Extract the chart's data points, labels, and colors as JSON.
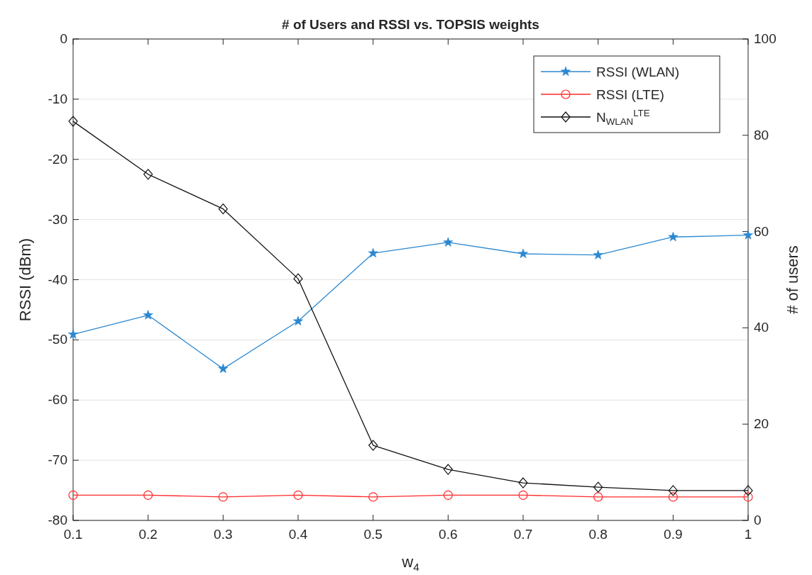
{
  "chart_data": {
    "type": "line",
    "title": "# of Users and RSSI vs. TOPSIS weights",
    "xlabel": "w$_{4}$",
    "ylabel": "RSSI (dBm)",
    "y2label": "# of users",
    "x": [
      0.1,
      0.2,
      0.3,
      0.4,
      0.5,
      0.6,
      0.7,
      0.8,
      0.9,
      1
    ],
    "series": [
      {
        "name": "RSSI (WLAN)",
        "color": "#2b88d0",
        "marker": "star",
        "values": [
          -49.1,
          -45.9,
          -54.8,
          -46.9,
          -35.6,
          -33.8,
          -35.7,
          -35.9,
          -32.9,
          -32.6
        ]
      },
      {
        "name": "RSSI (LTE)",
        "color": "#ff2a2a",
        "marker": "circle",
        "values": [
          -75.8,
          -75.8,
          -76.1,
          -75.8,
          -76.1,
          -75.8,
          -75.8,
          -76.1,
          -76.1,
          -76.1
        ]
      },
      {
        "name": "N$_{WLAN}$$^{LTE}$",
        "color": "#111111",
        "marker": "diamond",
        "axis": "y2",
        "values": [
          82.9,
          71.9,
          64.7,
          50.2,
          15.6,
          10.6,
          7.8,
          6.9,
          6.2,
          6.2
        ]
      }
    ],
    "xlim": [
      0.1,
      1
    ],
    "xticks": [
      0.1,
      0.2,
      0.3,
      0.4,
      0.5,
      0.6,
      0.7,
      0.8,
      0.9,
      1
    ],
    "ylim": [
      -80,
      0
    ],
    "yticks": [
      -80,
      -70,
      -60,
      -50,
      -40,
      -30,
      -20,
      -10,
      0
    ],
    "y2lim": [
      0,
      100
    ],
    "y2ticks": [
      0,
      20,
      40,
      60,
      80,
      100
    ],
    "grid": "y",
    "legend": "top right",
    "line_style": "solid"
  }
}
